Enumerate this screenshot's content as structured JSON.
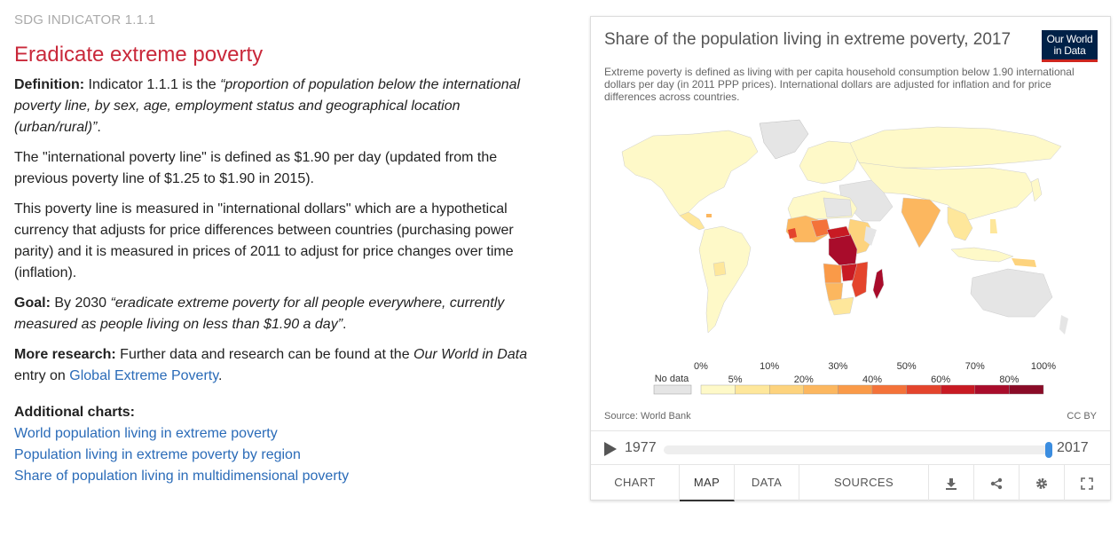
{
  "left": {
    "kicker": "SDG INDICATOR 1.1.1",
    "heading": "Eradicate extreme poverty",
    "definition": {
      "label": "Definition:",
      "text_before": " Indicator 1.1.1 is the ",
      "quote": "“proportion of population below the international poverty line, by sex, age, employment status and geographical location (urban/rural)”",
      "text_after": "."
    },
    "para2": "The \"international poverty line\" is defined as $1.90 per day (updated from the previous poverty line of $1.25 to $1.90 in 2015).",
    "para3": "This poverty line is measured in \"international dollars\" which are a hypothetical currency that adjusts for price differences between countries (purchasing power parity) and it is measured in prices of 2011 to adjust for price changes over time (inflation).",
    "goal": {
      "label": "Goal:",
      "text_before": " By 2030 ",
      "quote": "“eradicate extreme poverty for all people everywhere, currently measured as people living on less than $1.90 a day”",
      "text_after": "."
    },
    "more_research": {
      "label": "More research:",
      "text1": " Further data and research can be found at the ",
      "italic": "Our World in Data",
      "text2": " entry on ",
      "link": "Global Extreme Poverty",
      "text3": "."
    },
    "additional": {
      "title": "Additional charts:",
      "links": [
        "World population living in extreme poverty",
        "Population living in extreme poverty by region",
        "Share of population living in multidimensional poverty"
      ]
    }
  },
  "chart": {
    "title": "Share of the population living in extreme poverty, 2017",
    "subtitle": "Extreme poverty is defined as living with per capita household consumption below 1.90 international dollars per day (in 2011 PPP prices). International dollars are adjusted for inflation and for price differences across countries.",
    "logo_line1": "Our World",
    "logo_line2": "in Data",
    "source": "Source: World Bank",
    "license": "CC BY",
    "legend": {
      "no_data_label": "No data",
      "no_data_color": "#e5e5e5",
      "top_labels": [
        "0%",
        "10%",
        "30%",
        "50%",
        "70%",
        "100%"
      ],
      "bottom_labels": [
        "5%",
        "20%",
        "40%",
        "60%",
        "80%"
      ],
      "thresholds": [
        0,
        5,
        10,
        20,
        30,
        40,
        50,
        60,
        70,
        80,
        100
      ],
      "colors": [
        "#fef9c8",
        "#fee79b",
        "#fdd37d",
        "#fcb75f",
        "#fa9a48",
        "#f47239",
        "#e4442c",
        "#c81a23",
        "#a90c2b",
        "#8a0b27"
      ]
    },
    "timeline": {
      "start": "1977",
      "end": "2017",
      "position": 1.0
    },
    "tabs": [
      "CHART",
      "MAP",
      "DATA",
      "SOURCES"
    ],
    "active_tab": "MAP",
    "actions": [
      "download-icon",
      "share-icon",
      "settings-icon",
      "fullscreen-icon"
    ]
  }
}
